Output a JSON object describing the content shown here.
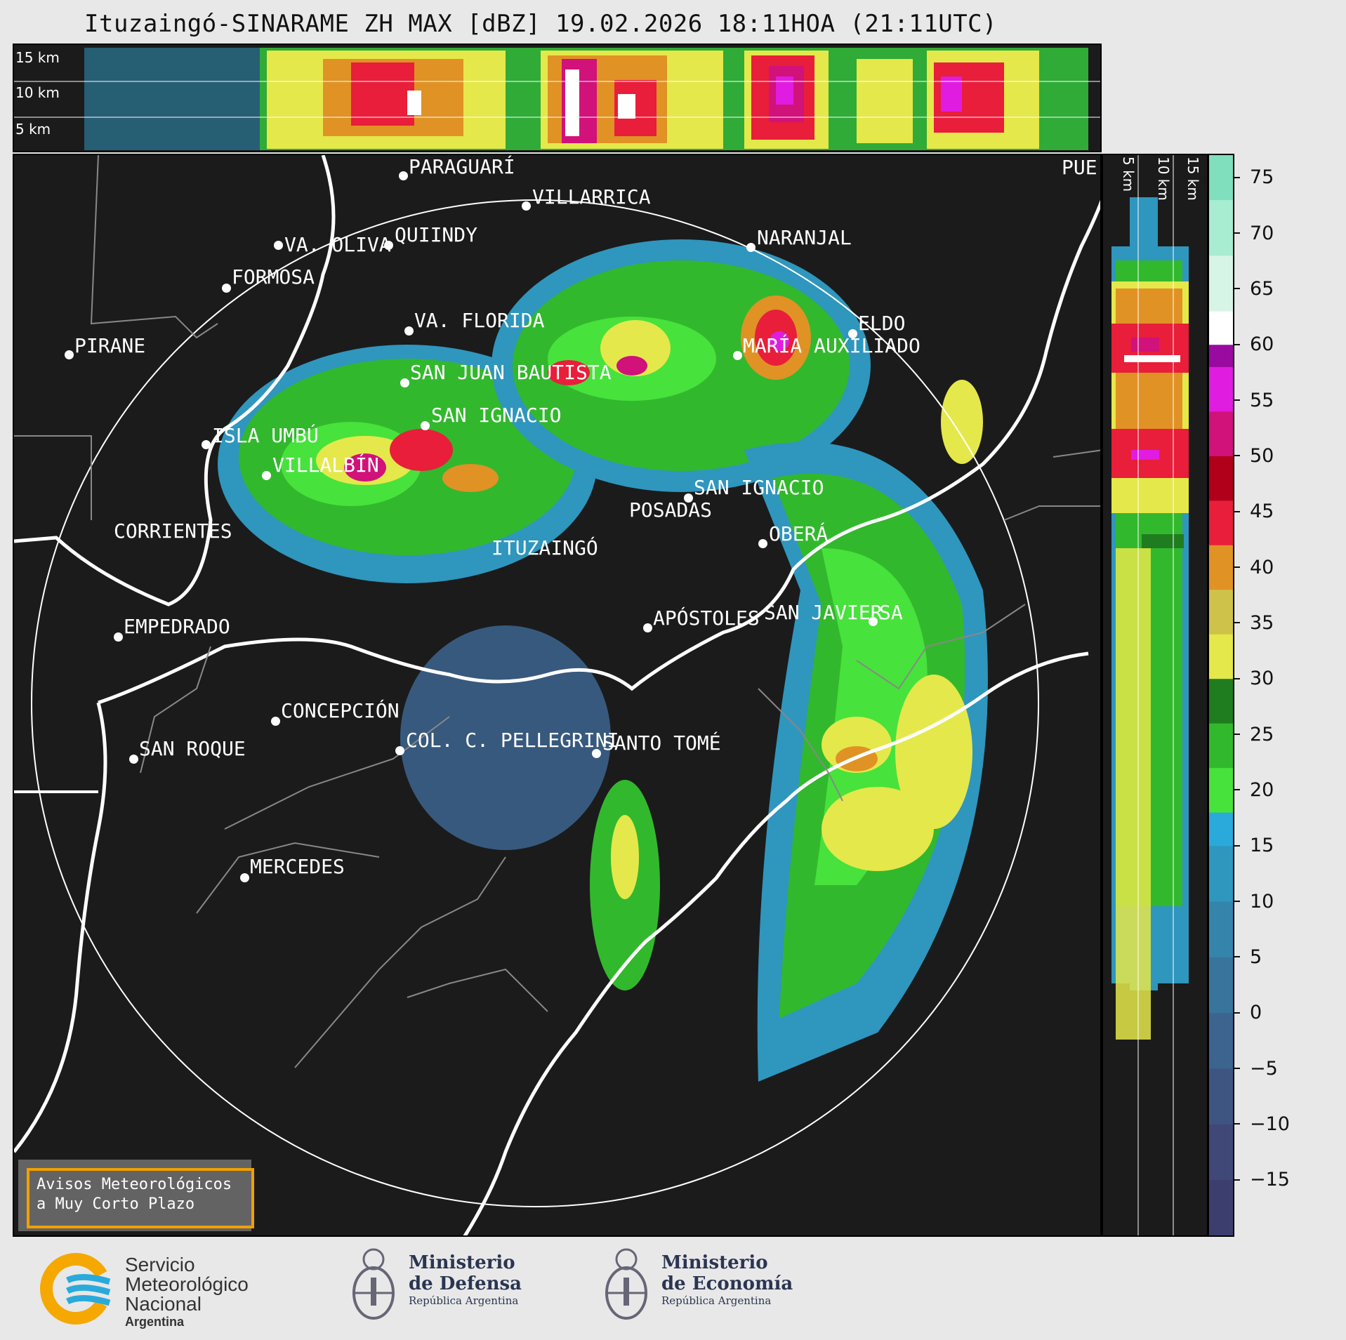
{
  "title": "Ituzaingó-SINARAME ZH MAX [dBZ] 19.02.2026 18:11HOA (21:11UTC)",
  "top_panel": {
    "height_labels": [
      "15 km",
      "10 km",
      "5 km"
    ]
  },
  "side_panel": {
    "height_labels": [
      "5 km",
      "10 km",
      "15 km"
    ]
  },
  "map": {
    "cities": [
      {
        "name": "PIRANE"
      },
      {
        "name": "PARAGUARÍ"
      },
      {
        "name": "VILLARRICA"
      },
      {
        "name": "PUE"
      },
      {
        "name": "VA. OLIVA"
      },
      {
        "name": "QUIINDY"
      },
      {
        "name": "NARANJAL"
      },
      {
        "name": "FORMOSA"
      },
      {
        "name": "VA. FLORIDA"
      },
      {
        "name": "ELDO"
      },
      {
        "name": "MARÍA AUXILIADO"
      },
      {
        "name": "SAN JUAN BAUTISTA"
      },
      {
        "name": "SAN IGNACIO"
      },
      {
        "name": "ISLA UMBÚ"
      },
      {
        "name": "VILLALBÍN"
      },
      {
        "name": "SAN IGNACIO"
      },
      {
        "name": "POSADAS"
      },
      {
        "name": "CORRIENTES"
      },
      {
        "name": "ITUZAINGÓ"
      },
      {
        "name": "OBERÁ"
      },
      {
        "name": "EMPEDRADO"
      },
      {
        "name": "APÓSTOLES"
      },
      {
        "name": "SAN JAVIER"
      },
      {
        "name": "SA"
      },
      {
        "name": "CONCEPCIÓN"
      },
      {
        "name": "COL. C. PELLEGRINI"
      },
      {
        "name": "SANTO TOMÉ"
      },
      {
        "name": "SAN ROQUE"
      },
      {
        "name": "MERCEDES"
      }
    ]
  },
  "colorbar": {
    "unit": "dBZ",
    "tick_labels": [
      "75",
      "70",
      "65",
      "60",
      "55",
      "50",
      "45",
      "40",
      "35",
      "30",
      "25",
      "20",
      "15",
      "10",
      "5",
      "0",
      "−5",
      "−10",
      "−15"
    ],
    "min": -20,
    "max": 77,
    "stops": [
      {
        "from": -20,
        "to": -15,
        "color": "#3c3f6e"
      },
      {
        "from": -15,
        "to": -10,
        "color": "#3f4877"
      },
      {
        "from": -10,
        "to": -5,
        "color": "#3f5581"
      },
      {
        "from": -5,
        "to": 0,
        "color": "#3c648e"
      },
      {
        "from": 0,
        "to": 5,
        "color": "#39749c"
      },
      {
        "from": 5,
        "to": 10,
        "color": "#3584ac"
      },
      {
        "from": 10,
        "to": 15,
        "color": "#2f96be"
      },
      {
        "from": 15,
        "to": 18,
        "color": "#2aaadb"
      },
      {
        "from": 18,
        "to": 22,
        "color": "#47e23c"
      },
      {
        "from": 22,
        "to": 26,
        "color": "#32b82d"
      },
      {
        "from": 26,
        "to": 30,
        "color": "#1f7d1f"
      },
      {
        "from": 30,
        "to": 34,
        "color": "#e5e84a"
      },
      {
        "from": 34,
        "to": 38,
        "color": "#cfc24a"
      },
      {
        "from": 38,
        "to": 42,
        "color": "#e09225"
      },
      {
        "from": 42,
        "to": 46,
        "color": "#e81e3a"
      },
      {
        "from": 46,
        "to": 50,
        "color": "#b0001a"
      },
      {
        "from": 50,
        "to": 54,
        "color": "#d0127a"
      },
      {
        "from": 54,
        "to": 58,
        "color": "#e01ce0"
      },
      {
        "from": 58,
        "to": 60,
        "color": "#9a0aa0"
      },
      {
        "from": 60,
        "to": 63,
        "color": "#ffffff"
      },
      {
        "from": 63,
        "to": 68,
        "color": "#d7f5e6"
      },
      {
        "from": 68,
        "to": 73,
        "color": "#a8ecd2"
      },
      {
        "from": 73,
        "to": 77,
        "color": "#80dfbd"
      }
    ]
  },
  "warnings": {
    "line1": "Avisos Meteorológicos",
    "line2": "a Muy Corto Plazo"
  },
  "footer": {
    "smn": {
      "line1": "Servicio",
      "line2": "Meteorológico",
      "line3": "Nacional",
      "line4": "Argentina"
    },
    "defensa": {
      "line1": "Ministerio",
      "line2": "de Defensa",
      "line3": "República Argentina"
    },
    "economia": {
      "line1": "Ministerio",
      "line2": "de Economía",
      "line3": "República Argentina"
    }
  },
  "colors": {
    "background": "#1b1b1b",
    "page": "#e8e8e8",
    "warning_border": "#f0a000"
  }
}
